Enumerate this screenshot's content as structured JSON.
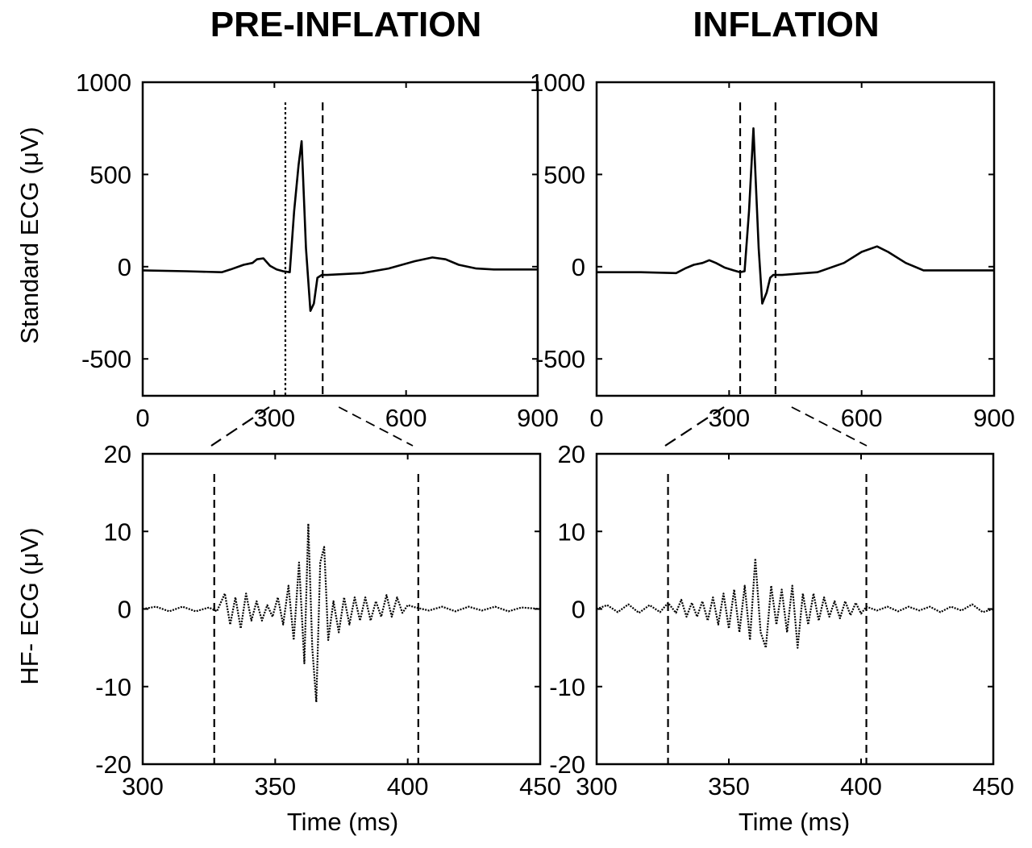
{
  "titles": {
    "left": "PRE-INFLATION",
    "right": "INFLATION"
  },
  "ylabels": {
    "top": "Standard ECG (μV)",
    "bottom": "HF- ECG (μV)"
  },
  "xlabels": {
    "left": "Time (ms)",
    "right": "Time (ms)"
  },
  "chart_data": [
    {
      "id": "std-pre",
      "type": "line",
      "column": "left",
      "row": "top",
      "column_title": "PRE-INFLATION",
      "ylabel": "Standard ECG (μV)",
      "xlabel": "",
      "xlim": [
        0,
        900
      ],
      "ylim": [
        -700,
        1000
      ],
      "xticks": [
        0,
        300,
        600,
        900
      ],
      "yticks": [
        1000,
        500,
        0,
        -500
      ],
      "grid": false,
      "markers": [
        {
          "x": 325,
          "style": "dotted"
        },
        {
          "x": 410,
          "style": "dashed"
        }
      ],
      "series": [
        {
          "style": "solid",
          "x": [
            0,
            100,
            180,
            200,
            230,
            250,
            260,
            275,
            290,
            305,
            320,
            335,
            345,
            355,
            362,
            372,
            382,
            390,
            398,
            408,
            420,
            500,
            560,
            620,
            660,
            690,
            720,
            760,
            800,
            900
          ],
          "y": [
            -20,
            -25,
            -30,
            -15,
            10,
            20,
            40,
            45,
            5,
            -15,
            -25,
            -30,
            300,
            550,
            680,
            100,
            -240,
            -200,
            -60,
            -45,
            -45,
            -35,
            -10,
            30,
            50,
            40,
            10,
            -10,
            -15,
            -15
          ]
        }
      ]
    },
    {
      "id": "std-inf",
      "type": "line",
      "column": "right",
      "row": "top",
      "column_title": "INFLATION",
      "ylabel": "",
      "xlabel": "",
      "xlim": [
        0,
        900
      ],
      "ylim": [
        -700,
        1000
      ],
      "xticks": [
        0,
        300,
        600,
        900
      ],
      "yticks": [
        1000,
        500,
        0,
        -500
      ],
      "grid": false,
      "markers": [
        {
          "x": 325,
          "style": "dashed"
        },
        {
          "x": 405,
          "style": "dashed"
        }
      ],
      "series": [
        {
          "style": "solid",
          "x": [
            0,
            100,
            180,
            200,
            220,
            240,
            255,
            270,
            290,
            310,
            325,
            335,
            345,
            355,
            367,
            375,
            385,
            393,
            400,
            420,
            500,
            560,
            600,
            635,
            660,
            700,
            740,
            800,
            900
          ],
          "y": [
            -30,
            -30,
            -35,
            -10,
            10,
            20,
            35,
            20,
            -5,
            -20,
            -30,
            -25,
            300,
            750,
            100,
            -200,
            -140,
            -60,
            -45,
            -45,
            -30,
            20,
            80,
            110,
            80,
            20,
            -20,
            -20,
            -20
          ]
        }
      ]
    },
    {
      "id": "hf-pre",
      "type": "line",
      "column": "left",
      "row": "bottom",
      "ylabel": "HF- ECG (μV)",
      "xlabel": "Time (ms)",
      "xlim": [
        300,
        450
      ],
      "ylim": [
        -20,
        20
      ],
      "xticks": [
        300,
        350,
        400,
        450
      ],
      "yticks": [
        20,
        10,
        0,
        -10,
        -20
      ],
      "grid": false,
      "markers": [
        {
          "x": 327,
          "style": "dashed"
        },
        {
          "x": 404,
          "style": "dashed"
        }
      ],
      "series": [
        {
          "style": "dotted",
          "x": [
            300,
            305,
            310,
            315,
            320,
            325,
            328,
            331,
            333,
            335,
            337,
            339,
            341,
            343,
            345,
            347,
            349,
            351,
            353,
            355,
            357,
            359,
            361,
            362.5,
            364,
            365.5,
            367,
            368.5,
            370,
            372,
            374,
            376,
            378,
            380,
            382,
            384,
            386,
            388,
            390,
            392,
            394,
            396,
            398,
            400,
            403,
            408,
            413,
            418,
            423,
            428,
            433,
            438,
            443,
            450
          ],
          "y": [
            0,
            0.3,
            -0.3,
            0.3,
            -0.3,
            0.2,
            -0.3,
            2,
            -2,
            1.5,
            -2.5,
            2,
            -1.5,
            1,
            -1.5,
            0.5,
            -1,
            1.5,
            -2,
            3,
            -4,
            6,
            -7,
            11,
            -5,
            -12,
            6,
            8,
            -4,
            1,
            -3,
            1.5,
            -2,
            1.5,
            -1.5,
            1.5,
            -1.5,
            1,
            -1,
            1.8,
            -1,
            1.5,
            -0.5,
            0.5,
            0.2,
            -0.2,
            0.3,
            -0.3,
            0.3,
            -0.2,
            0.3,
            -0.3,
            0.2,
            0
          ]
        }
      ]
    },
    {
      "id": "hf-inf",
      "type": "line",
      "column": "right",
      "row": "bottom",
      "ylabel": "",
      "xlabel": "Time (ms)",
      "xlim": [
        300,
        450
      ],
      "ylim": [
        -20,
        20
      ],
      "xticks": [
        300,
        350,
        400,
        450
      ],
      "yticks": [
        20,
        10,
        0,
        -10,
        -20
      ],
      "grid": false,
      "markers": [
        {
          "x": 327,
          "style": "dashed"
        },
        {
          "x": 402,
          "style": "dashed"
        }
      ],
      "series": [
        {
          "style": "dotted",
          "x": [
            300,
            304,
            308,
            312,
            316,
            320,
            324,
            327,
            330,
            332,
            334,
            336,
            338,
            340,
            342,
            344,
            346,
            348,
            350,
            352,
            354,
            356,
            358,
            360,
            362,
            364,
            366,
            368,
            370,
            372,
            374,
            376,
            378,
            380,
            382,
            384,
            386,
            388,
            390,
            392,
            394,
            396,
            398,
            400,
            402,
            406,
            410,
            414,
            418,
            422,
            426,
            430,
            434,
            438,
            442,
            446,
            450
          ],
          "y": [
            0,
            0.5,
            -0.4,
            0.6,
            -0.5,
            0.5,
            -0.4,
            0.8,
            -0.5,
            1.2,
            -1,
            0.8,
            -1,
            1,
            -1.5,
            1.5,
            -2,
            2,
            -2.5,
            2.5,
            -3,
            3,
            -4,
            6.5,
            -3,
            -5,
            3,
            -2,
            2.5,
            -3,
            3,
            -5,
            2,
            -2,
            2,
            -1.5,
            1.5,
            -1,
            1,
            -1.2,
            1,
            -0.8,
            0.8,
            -0.6,
            0.3,
            -0.2,
            0.3,
            -0.3,
            0.3,
            -0.2,
            0.3,
            -0.4,
            0.3,
            -0.2,
            0.6,
            -0.4,
            0
          ]
        }
      ]
    }
  ]
}
